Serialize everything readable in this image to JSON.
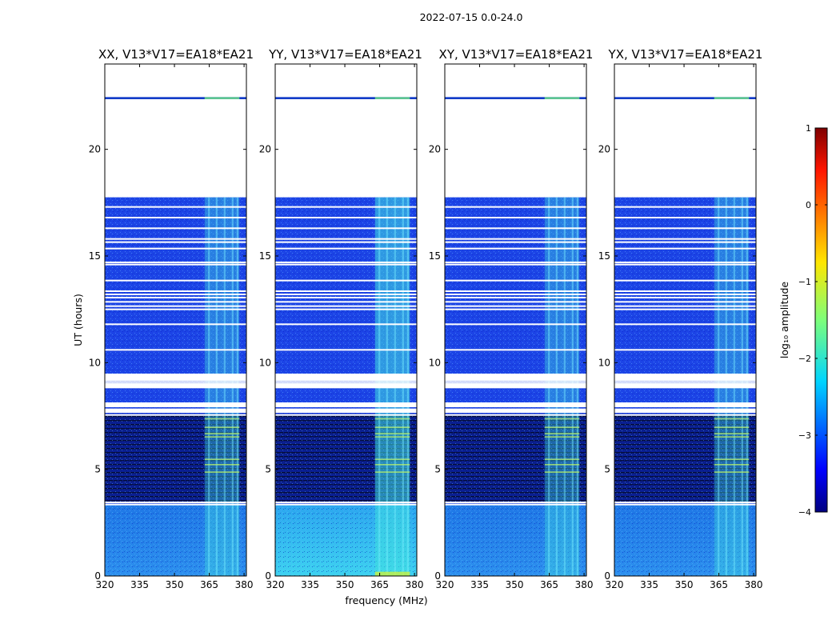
{
  "figure": {
    "title": "2022-07-15 0.0-24.0",
    "xlabel": "frequency (MHz)",
    "ylabel": "UT (hours)"
  },
  "chart_data": {
    "type": "heatmap",
    "panels": [
      {
        "title": "XX, V13*V17=EA18*EA21",
        "corr": "XX"
      },
      {
        "title": "YY, V13*V17=EA18*EA21",
        "corr": "YY"
      },
      {
        "title": "XY, V13*V17=EA18*EA21",
        "corr": "XY"
      },
      {
        "title": "YX, V13*V17=EA18*EA21",
        "corr": "YX"
      }
    ],
    "xlim": [
      320,
      381
    ],
    "xticks": [
      320,
      335,
      350,
      365,
      380
    ],
    "ylim": [
      0,
      24
    ],
    "yticks": [
      0,
      5,
      10,
      15,
      20
    ],
    "xlabel": "frequency (MHz)",
    "ylabel": "UT (hours)",
    "data_coverage_hours": [
      [
        0,
        17.75
      ],
      [
        22.35,
        22.45
      ]
    ],
    "gap_hours": [
      3.35,
      3.45,
      7.55,
      7.7,
      7.95,
      8.1,
      8.85,
      8.95,
      9.1,
      9.25,
      9.35,
      9.45,
      10.6,
      11.8,
      12.5,
      12.65,
      12.85,
      13.05,
      13.2,
      13.35,
      13.85,
      14.6,
      14.7,
      15.35,
      15.65,
      15.8,
      16.3,
      16.8,
      17.3
    ],
    "rfi_band_mhz": [
      363,
      378
    ],
    "colorbar": {
      "label": "log₁₀ amplitude",
      "min": -4,
      "max": 1,
      "ticks": [
        1,
        0,
        -1,
        -2,
        -3,
        -4
      ],
      "colormap": "jet"
    }
  },
  "colors": {
    "background": "#00307f",
    "rfi": "#3fe0e0",
    "gap": "#ffffff"
  }
}
